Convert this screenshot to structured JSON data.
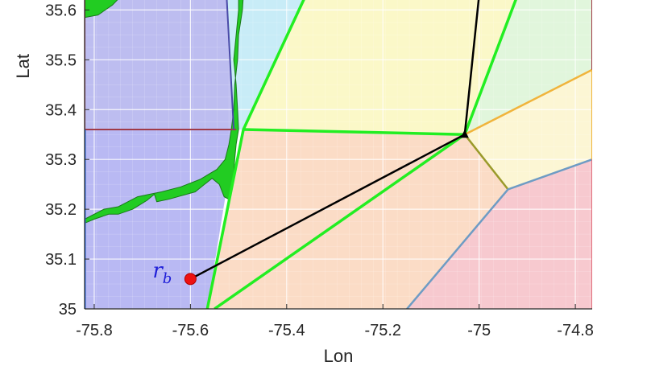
{
  "chart_data": {
    "type": "map",
    "xlabel": "Lon",
    "ylabel": "Lat",
    "xlim": [
      -75.82,
      -74.765
    ],
    "ylim": [
      35.0,
      35.62
    ],
    "xticks": [
      -75.8,
      -75.6,
      -75.4,
      -75.2,
      -75.0,
      -74.8
    ],
    "xtick_labels": [
      "-75.8",
      "-75.6",
      "-75.4",
      "-75.2",
      "-75",
      "-74.8"
    ],
    "yticks": [
      35.0,
      35.1,
      35.2,
      35.3,
      35.4,
      35.5,
      35.6
    ],
    "ytick_labels": [
      "35",
      "35.1",
      "35.2",
      "35.3",
      "35.4",
      "35.5",
      "35.6"
    ],
    "grid": true,
    "regions": [
      {
        "id": "blue-lower",
        "fill": "#b9b9f3",
        "points": [
          [
            -75.82,
            35.0
          ],
          [
            -75.565,
            35.0
          ],
          [
            -75.505,
            35.36
          ],
          [
            -75.82,
            35.36
          ]
        ]
      },
      {
        "id": "blue-upper",
        "fill": "#bdbdf0",
        "points": [
          [
            -75.82,
            35.36
          ],
          [
            -75.51,
            35.36
          ],
          [
            -75.525,
            35.63
          ],
          [
            -75.82,
            35.63
          ]
        ]
      },
      {
        "id": "cyan",
        "fill": "#c8ecf7",
        "points": [
          [
            -75.525,
            35.63
          ],
          [
            -75.51,
            35.36
          ],
          [
            -75.49,
            35.36
          ],
          [
            -75.36,
            35.63
          ]
        ]
      },
      {
        "id": "yellow",
        "fill": "#fbf8c8",
        "points": [
          [
            -75.36,
            35.63
          ],
          [
            -75.49,
            35.36
          ],
          [
            -75.03,
            35.35
          ],
          [
            -74.92,
            35.63
          ]
        ]
      },
      {
        "id": "light-green",
        "fill": "#e1f6dc",
        "points": [
          [
            -74.92,
            35.63
          ],
          [
            -75.03,
            35.35
          ],
          [
            -74.765,
            35.48
          ],
          [
            -74.765,
            35.63
          ]
        ]
      },
      {
        "id": "light-yellow",
        "fill": "#fcf6d4",
        "points": [
          [
            -75.03,
            35.35
          ],
          [
            -74.765,
            35.48
          ],
          [
            -74.765,
            35.3
          ],
          [
            -74.94,
            35.24
          ]
        ]
      },
      {
        "id": "peach",
        "fill": "#fbdcc6",
        "points": [
          [
            -75.565,
            35.0
          ],
          [
            -75.49,
            35.36
          ],
          [
            -75.03,
            35.35
          ],
          [
            -74.94,
            35.24
          ],
          [
            -75.15,
            35.0
          ]
        ]
      },
      {
        "id": "pink",
        "fill": "#f7c9cf",
        "points": [
          [
            -75.15,
            35.0
          ],
          [
            -74.94,
            35.24
          ],
          [
            -74.765,
            35.3
          ],
          [
            -74.765,
            35.0
          ]
        ]
      }
    ],
    "land": [
      {
        "id": "island-top",
        "fill": "#22cc22",
        "points": [
          [
            -75.82,
            35.63
          ],
          [
            -75.742,
            35.63
          ],
          [
            -75.762,
            35.61
          ],
          [
            -75.792,
            35.59
          ],
          [
            -75.82,
            35.585
          ]
        ]
      },
      {
        "id": "barrier-island",
        "fill": "#22cc22",
        "points": [
          [
            -75.5,
            35.63
          ],
          [
            -75.5,
            35.6
          ],
          [
            -75.505,
            35.55
          ],
          [
            -75.51,
            35.5
          ],
          [
            -75.505,
            35.45
          ],
          [
            -75.502,
            35.4
          ],
          [
            -75.5,
            35.36
          ],
          [
            -75.505,
            35.33
          ],
          [
            -75.508,
            35.3
          ],
          [
            -75.51,
            35.27
          ],
          [
            -75.52,
            35.22
          ],
          [
            -75.53,
            35.225
          ],
          [
            -75.54,
            35.25
          ],
          [
            -75.555,
            35.262
          ],
          [
            -75.59,
            35.235
          ],
          [
            -75.645,
            35.22
          ],
          [
            -75.67,
            35.215
          ],
          [
            -75.675,
            35.23
          ],
          [
            -75.69,
            35.218
          ],
          [
            -75.72,
            35.2
          ],
          [
            -75.75,
            35.19
          ],
          [
            -75.77,
            35.19
          ],
          [
            -75.8,
            35.18
          ],
          [
            -75.82,
            35.172
          ],
          [
            -75.82,
            35.18
          ],
          [
            -75.78,
            35.2
          ],
          [
            -75.75,
            35.205
          ],
          [
            -75.71,
            35.225
          ],
          [
            -75.685,
            35.23
          ],
          [
            -75.66,
            35.235
          ],
          [
            -75.62,
            35.245
          ],
          [
            -75.58,
            35.26
          ],
          [
            -75.545,
            35.28
          ],
          [
            -75.528,
            35.3
          ],
          [
            -75.52,
            35.33
          ],
          [
            -75.515,
            35.36
          ],
          [
            -75.51,
            35.4
          ],
          [
            -75.508,
            35.45
          ],
          [
            -75.502,
            35.5
          ],
          [
            -75.5,
            35.55
          ],
          [
            -75.492,
            35.6
          ],
          [
            -75.49,
            35.63
          ]
        ]
      }
    ],
    "edges": [
      {
        "id": "green-upper",
        "color": "#22ee22",
        "width": 3.5,
        "points": [
          [
            -75.565,
            35.0
          ],
          [
            -75.49,
            35.36
          ],
          [
            -75.36,
            35.63
          ]
        ]
      },
      {
        "id": "green-mid",
        "color": "#22ee22",
        "width": 3.5,
        "points": [
          [
            -75.49,
            35.36
          ],
          [
            -75.03,
            35.35
          ],
          [
            -74.92,
            35.63
          ]
        ]
      },
      {
        "id": "green-lower",
        "color": "#22ee22",
        "width": 3.5,
        "points": [
          [
            -75.55,
            35.0
          ],
          [
            -75.03,
            35.35
          ]
        ]
      },
      {
        "id": "olive-edge",
        "color": "#9a9a2a",
        "width": 2.5,
        "points": [
          [
            -75.03,
            35.35
          ],
          [
            -74.94,
            35.24
          ]
        ]
      },
      {
        "id": "orange-edge",
        "color": "#f0b43c",
        "width": 2.5,
        "points": [
          [
            -75.03,
            35.35
          ],
          [
            -74.765,
            35.48
          ]
        ]
      },
      {
        "id": "steel-edge",
        "color": "#6e9cc4",
        "width": 2.5,
        "points": [
          [
            -75.15,
            35.0
          ],
          [
            -74.94,
            35.24
          ],
          [
            -74.765,
            35.3
          ]
        ]
      },
      {
        "id": "maroon-edge",
        "color": "#a03a48",
        "width": 2,
        "points": [
          [
            -75.82,
            35.36
          ],
          [
            -75.505,
            35.36
          ]
        ]
      },
      {
        "id": "maroon-left",
        "color": "#a03a48",
        "width": 2,
        "points": [
          [
            -75.82,
            35.63
          ],
          [
            -75.82,
            35.36
          ]
        ]
      },
      {
        "id": "blue-left",
        "color": "#2a6adc",
        "width": 3,
        "points": [
          [
            -75.82,
            35.36
          ],
          [
            -75.82,
            35.0
          ]
        ]
      },
      {
        "id": "purple-edge",
        "color": "#4a4aa8",
        "width": 2,
        "points": [
          [
            -75.525,
            35.63
          ],
          [
            -75.51,
            35.36
          ]
        ]
      },
      {
        "id": "right-upper",
        "color": "#a03a48",
        "width": 2,
        "points": [
          [
            -74.765,
            35.63
          ],
          [
            -74.765,
            35.48
          ]
        ]
      },
      {
        "id": "right-mid",
        "color": "#f0b43c",
        "width": 2,
        "points": [
          [
            -74.765,
            35.48
          ],
          [
            -74.765,
            35.3
          ]
        ]
      },
      {
        "id": "right-lower",
        "color": "#e0707e",
        "width": 2,
        "points": [
          [
            -74.765,
            35.3
          ],
          [
            -74.765,
            35.0
          ]
        ]
      }
    ],
    "path": [
      [
        -75.6,
        35.06
      ],
      [
        -75.03,
        35.35
      ],
      [
        -75.0,
        35.63
      ]
    ],
    "path_color": "#000000",
    "start_point": {
      "x": -75.6,
      "y": 35.06,
      "color": "#ee1111"
    },
    "vertex_marker": {
      "x": -75.03,
      "y": 35.35,
      "color": "#000000"
    },
    "annotation": {
      "base": "r",
      "sub": "b",
      "x": -75.6,
      "y": 35.06
    }
  }
}
